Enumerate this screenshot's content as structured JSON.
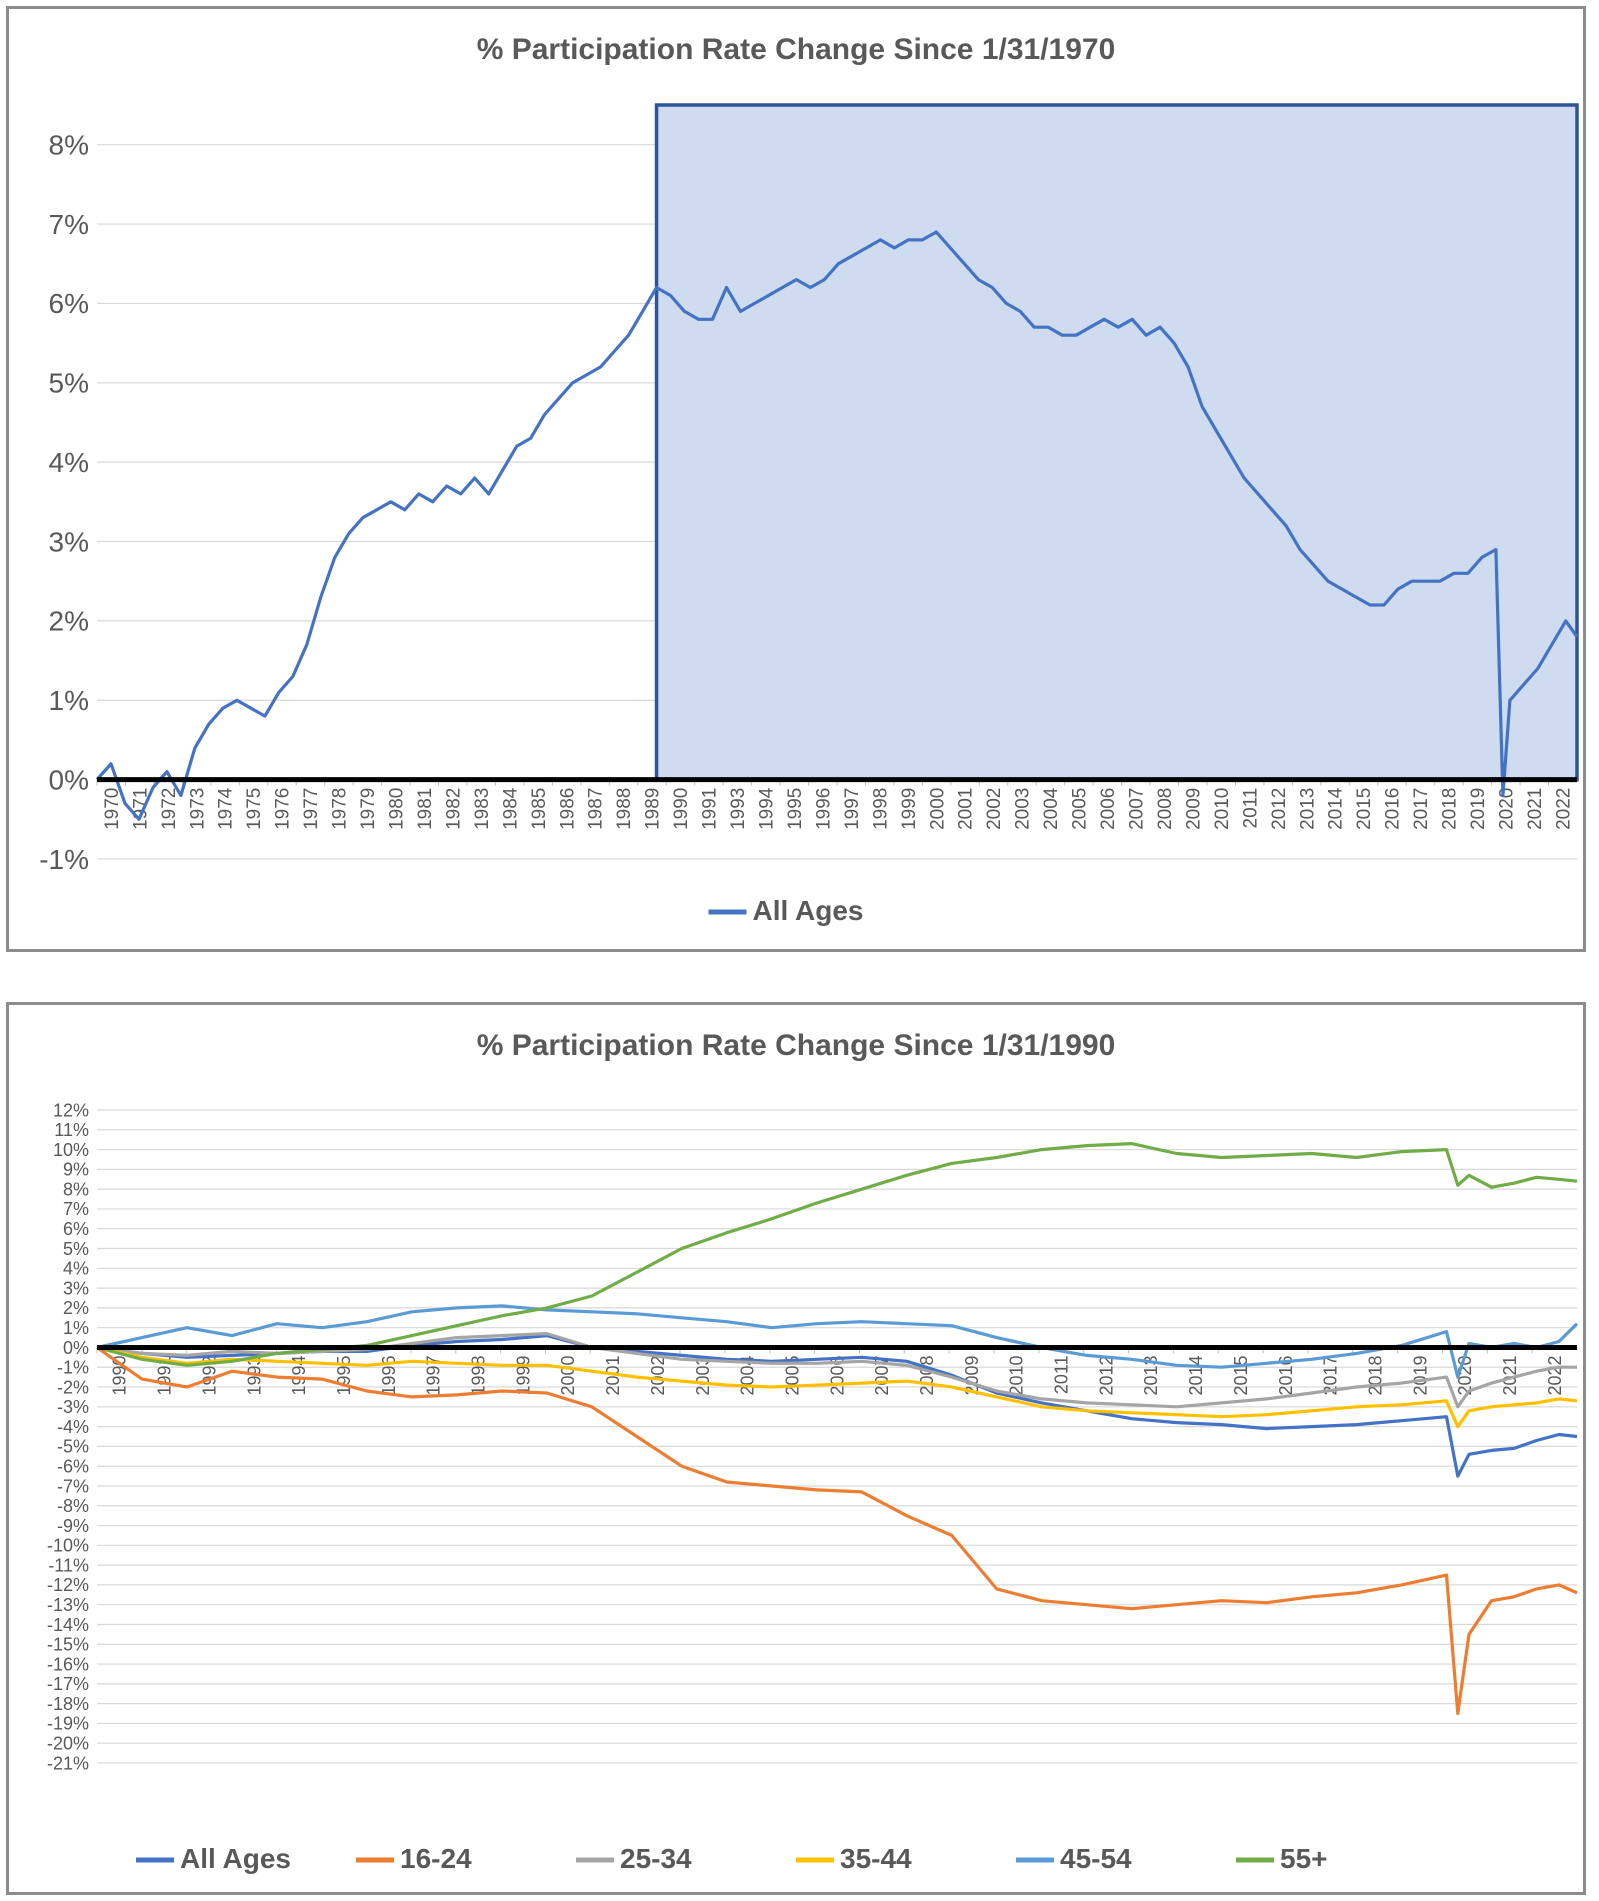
{
  "chart_data": [
    {
      "type": "line",
      "title": "% Participation Rate Change Since 1/31/1970",
      "ylim": [
        -1,
        8.5
      ],
      "yticks": [
        -1,
        0,
        1,
        2,
        3,
        4,
        5,
        6,
        7,
        8
      ],
      "ytick_labels": [
        "-1%",
        "0%",
        "1%",
        "2%",
        "3%",
        "4%",
        "5%",
        "6%",
        "7%",
        "8%"
      ],
      "xlim": [
        1970.0,
        2022.9
      ],
      "xtick_labels": [
        "1970",
        "1971",
        "1972",
        "1973",
        "1974",
        "1975",
        "1976",
        "1977",
        "1978",
        "1979",
        "1980",
        "1981",
        "1982",
        "1983",
        "1984",
        "1985",
        "1986",
        "1987",
        "1988",
        "1989",
        "1990",
        "1991",
        "1993",
        "1994",
        "1995",
        "1996",
        "1997",
        "1998",
        "1999",
        "2000",
        "2001",
        "2002",
        "2003",
        "2004",
        "2005",
        "2006",
        "2007",
        "2008",
        "2009",
        "2010",
        "2011",
        "2012",
        "2013",
        "2014",
        "2015",
        "2016",
        "2017",
        "2018",
        "2019",
        "2020",
        "2021",
        "2022"
      ],
      "grid": true,
      "legend_position": "bottom",
      "highlight_region": {
        "x": [
          1990.0,
          2022.9
        ],
        "y": [
          0,
          8.5
        ],
        "fill": "#cfdbee",
        "stroke": "#2e5597"
      },
      "series": [
        {
          "name": "All Ages",
          "color": "#4472c4",
          "x": [
            1970.0,
            1970.5,
            1971.0,
            1971.5,
            1972.0,
            1972.5,
            1973.0,
            1973.5,
            1974.0,
            1974.5,
            1975.0,
            1975.5,
            1976.0,
            1976.5,
            1977.0,
            1977.5,
            1978.0,
            1978.5,
            1979.0,
            1979.5,
            1980.0,
            1980.5,
            1981.0,
            1981.5,
            1982.0,
            1982.5,
            1983.0,
            1983.5,
            1984.0,
            1984.5,
            1985.0,
            1985.5,
            1986.0,
            1986.5,
            1987.0,
            1987.5,
            1988.0,
            1988.5,
            1989.0,
            1989.5,
            1990.0,
            1990.5,
            1991.0,
            1991.5,
            1992.0,
            1992.5,
            1993.0,
            1993.5,
            1994.0,
            1994.5,
            1995.0,
            1995.5,
            1996.0,
            1996.5,
            1997.0,
            1997.5,
            1998.0,
            1998.5,
            1999.0,
            1999.5,
            2000.0,
            2000.5,
            2001.0,
            2001.5,
            2002.0,
            2002.5,
            2003.0,
            2003.5,
            2004.0,
            2004.5,
            2005.0,
            2005.5,
            2006.0,
            2006.5,
            2007.0,
            2007.5,
            2008.0,
            2008.5,
            2009.0,
            2009.5,
            2010.0,
            2010.5,
            2011.0,
            2011.5,
            2012.0,
            2012.5,
            2013.0,
            2013.5,
            2014.0,
            2014.5,
            2015.0,
            2015.5,
            2016.0,
            2016.5,
            2017.0,
            2017.5,
            2018.0,
            2018.5,
            2019.0,
            2019.5,
            2020.0,
            2020.25,
            2020.5,
            2021.0,
            2021.5,
            2022.0,
            2022.5,
            2022.9
          ],
          "y": [
            0.0,
            0.2,
            -0.3,
            -0.5,
            -0.1,
            0.1,
            -0.2,
            0.4,
            0.7,
            0.9,
            1.0,
            0.9,
            0.8,
            1.1,
            1.3,
            1.7,
            2.3,
            2.8,
            3.1,
            3.3,
            3.4,
            3.5,
            3.4,
            3.6,
            3.5,
            3.7,
            3.6,
            3.8,
            3.6,
            3.9,
            4.2,
            4.3,
            4.6,
            4.8,
            5.0,
            5.1,
            5.2,
            5.4,
            5.6,
            5.9,
            6.2,
            6.1,
            5.9,
            5.8,
            5.8,
            6.2,
            5.9,
            6.0,
            6.1,
            6.2,
            6.3,
            6.2,
            6.3,
            6.5,
            6.6,
            6.7,
            6.8,
            6.7,
            6.8,
            6.8,
            6.9,
            6.7,
            6.5,
            6.3,
            6.2,
            6.0,
            5.9,
            5.7,
            5.7,
            5.6,
            5.6,
            5.7,
            5.8,
            5.7,
            5.8,
            5.6,
            5.7,
            5.5,
            5.2,
            4.7,
            4.4,
            4.1,
            3.8,
            3.6,
            3.4,
            3.2,
            2.9,
            2.7,
            2.5,
            2.4,
            2.3,
            2.2,
            2.2,
            2.4,
            2.5,
            2.5,
            2.5,
            2.6,
            2.6,
            2.8,
            2.9,
            -0.2,
            1.0,
            1.2,
            1.4,
            1.7,
            2.0,
            1.8
          ]
        }
      ]
    },
    {
      "type": "line",
      "title": "% Participation Rate Change Since 1/31/1990",
      "ylim": [
        -21,
        12
      ],
      "yticks": [
        12,
        11,
        10,
        9,
        8,
        7,
        6,
        5,
        4,
        3,
        2,
        1,
        0,
        -1,
        -2,
        -3,
        -4,
        -5,
        -6,
        -7,
        -8,
        -9,
        -10,
        -11,
        -12,
        -13,
        -14,
        -15,
        -16,
        -17,
        -18,
        -19,
        -20,
        -21
      ],
      "ytick_labels": [
        "12%",
        "11%",
        "10%",
        "9%",
        "8%",
        "7%",
        "6%",
        "5%",
        "4%",
        "3%",
        "2%",
        "1%",
        "0%",
        "-1%",
        "-2%",
        "-3%",
        "-4%",
        "-5%",
        "-6%",
        "-7%",
        "-8%",
        "-9%",
        "-10%",
        "-11%",
        "-12%",
        "-13%",
        "-14%",
        "-15%",
        "-16%",
        "-17%",
        "-18%",
        "-19%",
        "-20%",
        "-21%"
      ],
      "xlim": [
        1990.0,
        2022.9
      ],
      "xtick_labels": [
        "1990",
        "1991",
        "1992",
        "1993",
        "1994",
        "1995",
        "1996",
        "1997",
        "1998",
        "1999",
        "2000",
        "2001",
        "2002",
        "2003",
        "2004",
        "2005",
        "2006",
        "2007",
        "2008",
        "2009",
        "2010",
        "2011",
        "2012",
        "2013",
        "2014",
        "2015",
        "2016",
        "2017",
        "2018",
        "2019",
        "2020",
        "2021",
        "2022"
      ],
      "grid": true,
      "legend_position": "bottom",
      "series": [
        {
          "name": "All Ages",
          "color": "#4472c4",
          "x": [
            1990,
            1991,
            1992,
            1993,
            1994,
            1995,
            1996,
            1997,
            1998,
            1999,
            2000,
            2001,
            2002,
            2003,
            2004,
            2005,
            2006,
            2007,
            2008,
            2009,
            2010,
            2011,
            2012,
            2013,
            2014,
            2015,
            2016,
            2017,
            2018,
            2019,
            2020.0,
            2020.25,
            2020.5,
            2021,
            2021.5,
            2022,
            2022.5,
            2022.9
          ],
          "y": [
            0,
            -0.3,
            -0.5,
            -0.4,
            -0.3,
            -0.2,
            -0.2,
            0.1,
            0.3,
            0.4,
            0.6,
            0.0,
            -0.2,
            -0.4,
            -0.6,
            -0.7,
            -0.6,
            -0.5,
            -0.7,
            -1.4,
            -2.3,
            -2.8,
            -3.2,
            -3.6,
            -3.8,
            -3.9,
            -4.1,
            -4.0,
            -3.9,
            -3.7,
            -3.5,
            -6.5,
            -5.4,
            -5.2,
            -5.1,
            -4.7,
            -4.4,
            -4.5
          ]
        },
        {
          "name": "16-24",
          "color": "#ed7d31",
          "x": [
            1990,
            1991,
            1992,
            1993,
            1994,
            1995,
            1996,
            1997,
            1998,
            1999,
            2000,
            2001,
            2002,
            2003,
            2004,
            2005,
            2006,
            2007,
            2008,
            2009,
            2010,
            2011,
            2012,
            2013,
            2014,
            2015,
            2016,
            2017,
            2018,
            2019,
            2020.0,
            2020.25,
            2020.5,
            2021,
            2021.5,
            2022,
            2022.5,
            2022.9
          ],
          "y": [
            0,
            -1.6,
            -2.0,
            -1.2,
            -1.5,
            -1.6,
            -2.2,
            -2.5,
            -2.4,
            -2.2,
            -2.3,
            -3.0,
            -4.5,
            -6.0,
            -6.8,
            -7.0,
            -7.2,
            -7.3,
            -8.5,
            -9.5,
            -12.2,
            -12.8,
            -13.0,
            -13.2,
            -13.0,
            -12.8,
            -12.9,
            -12.6,
            -12.4,
            -12.0,
            -11.5,
            -18.5,
            -14.5,
            -12.8,
            -12.6,
            -12.2,
            -12.0,
            -12.4
          ]
        },
        {
          "name": "25-34",
          "color": "#a5a5a5",
          "x": [
            1990,
            1991,
            1992,
            1993,
            1994,
            1995,
            1996,
            1997,
            1998,
            1999,
            2000,
            2001,
            2002,
            2003,
            2004,
            2005,
            2006,
            2007,
            2008,
            2009,
            2010,
            2011,
            2012,
            2013,
            2014,
            2015,
            2016,
            2017,
            2018,
            2019,
            2020.0,
            2020.25,
            2020.5,
            2021,
            2021.5,
            2022,
            2022.5,
            2022.9
          ],
          "y": [
            0,
            -0.3,
            -0.4,
            -0.2,
            -0.3,
            -0.2,
            -0.1,
            0.2,
            0.5,
            0.6,
            0.7,
            0.0,
            -0.3,
            -0.6,
            -0.7,
            -0.8,
            -0.8,
            -0.7,
            -0.9,
            -1.5,
            -2.2,
            -2.6,
            -2.8,
            -2.9,
            -3.0,
            -2.8,
            -2.6,
            -2.3,
            -2.0,
            -1.8,
            -1.5,
            -3.0,
            -2.2,
            -1.8,
            -1.5,
            -1.2,
            -1.0,
            -1.0
          ]
        },
        {
          "name": "35-44",
          "color": "#ffc000",
          "x": [
            1990,
            1991,
            1992,
            1993,
            1994,
            1995,
            1996,
            1997,
            1998,
            1999,
            2000,
            2001,
            2002,
            2003,
            2004,
            2005,
            2006,
            2007,
            2008,
            2009,
            2010,
            2011,
            2012,
            2013,
            2014,
            2015,
            2016,
            2017,
            2018,
            2019,
            2020.0,
            2020.25,
            2020.5,
            2021,
            2021.5,
            2022,
            2022.5,
            2022.9
          ],
          "y": [
            0,
            -0.5,
            -0.8,
            -0.6,
            -0.7,
            -0.8,
            -0.9,
            -0.7,
            -0.8,
            -0.9,
            -0.9,
            -1.2,
            -1.5,
            -1.7,
            -1.9,
            -2.0,
            -1.9,
            -1.8,
            -1.7,
            -2.0,
            -2.5,
            -3.0,
            -3.2,
            -3.3,
            -3.4,
            -3.5,
            -3.4,
            -3.2,
            -3.0,
            -2.9,
            -2.7,
            -4.0,
            -3.2,
            -3.0,
            -2.9,
            -2.8,
            -2.6,
            -2.7
          ]
        },
        {
          "name": "45-54",
          "color": "#5b9bd5",
          "x": [
            1990,
            1991,
            1992,
            1993,
            1994,
            1995,
            1996,
            1997,
            1998,
            1999,
            2000,
            2001,
            2002,
            2003,
            2004,
            2005,
            2006,
            2007,
            2008,
            2009,
            2010,
            2011,
            2012,
            2013,
            2014,
            2015,
            2016,
            2017,
            2018,
            2019,
            2020.0,
            2020.25,
            2020.5,
            2021,
            2021.5,
            2022,
            2022.5,
            2022.9
          ],
          "y": [
            0,
            0.5,
            1.0,
            0.6,
            1.2,
            1.0,
            1.3,
            1.8,
            2.0,
            2.1,
            1.9,
            1.8,
            1.7,
            1.5,
            1.3,
            1.0,
            1.2,
            1.3,
            1.2,
            1.1,
            0.5,
            0.0,
            -0.4,
            -0.6,
            -0.9,
            -1.0,
            -0.8,
            -0.6,
            -0.3,
            0.1,
            0.8,
            -1.5,
            0.2,
            0.0,
            0.2,
            0.0,
            0.3,
            1.2
          ]
        },
        {
          "name": "55+",
          "color": "#70ad47",
          "x": [
            1990,
            1991,
            1992,
            1993,
            1994,
            1995,
            1996,
            1997,
            1998,
            1999,
            2000,
            2001,
            2002,
            2003,
            2004,
            2005,
            2006,
            2007,
            2008,
            2009,
            2010,
            2011,
            2012,
            2013,
            2014,
            2015,
            2016,
            2017,
            2018,
            2019,
            2020.0,
            2020.25,
            2020.5,
            2021,
            2021.5,
            2022,
            2022.5,
            2022.9
          ],
          "y": [
            0,
            -0.6,
            -0.9,
            -0.7,
            -0.3,
            -0.1,
            0.1,
            0.6,
            1.1,
            1.6,
            2.0,
            2.6,
            3.8,
            5.0,
            5.8,
            6.5,
            7.3,
            8.0,
            8.7,
            9.3,
            9.6,
            10.0,
            10.2,
            10.3,
            9.8,
            9.6,
            9.7,
            9.8,
            9.6,
            9.9,
            10.0,
            8.2,
            8.7,
            8.1,
            8.3,
            8.6,
            8.5,
            8.4
          ]
        }
      ]
    }
  ]
}
